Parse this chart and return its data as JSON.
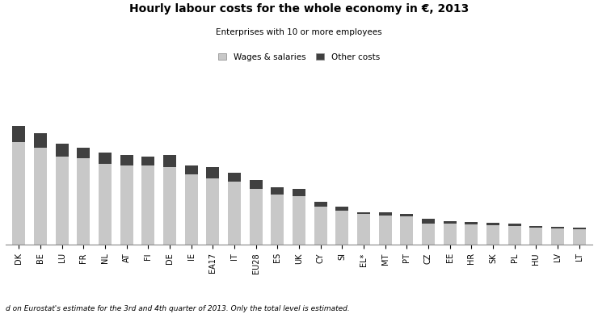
{
  "title": "Hourly labour costs for the whole economy in €, 2013",
  "subtitle": "Enterprises with 10 or more employees",
  "legend_labels": [
    "Wages & salaries",
    "Other costs"
  ],
  "footnote": "d on Eurostat's estimate for the 3rd and 4th quarter of 2013. Only the total level is estimated.",
  "categories": [
    "DK",
    "BE",
    "LU",
    "FR",
    "NL",
    "AT",
    "FI",
    "DE",
    "IE",
    "EA17",
    "IT",
    "EU28",
    "ES",
    "UK",
    "CY",
    "SI",
    "EL*",
    "MT",
    "PT",
    "CZ",
    "EE",
    "HR",
    "SK",
    "PL",
    "HU",
    "LV",
    "LT"
  ],
  "wages": [
    28.5,
    27.0,
    24.5,
    24.0,
    22.5,
    22.0,
    22.0,
    21.5,
    19.5,
    18.5,
    17.5,
    15.5,
    14.0,
    13.5,
    10.5,
    9.5,
    8.5,
    8.2,
    8.0,
    6.0,
    5.8,
    5.6,
    5.5,
    5.3,
    4.8,
    4.5,
    4.3
  ],
  "other": [
    4.5,
    4.0,
    3.5,
    3.0,
    3.0,
    2.8,
    2.5,
    3.5,
    2.5,
    3.0,
    2.5,
    2.5,
    2.0,
    2.0,
    1.5,
    1.0,
    0.5,
    0.8,
    0.5,
    1.2,
    0.7,
    0.8,
    0.7,
    0.6,
    0.5,
    0.4,
    0.4
  ],
  "wages_color": "#c8c8c8",
  "other_color": "#404040",
  "background_color": "#ffffff",
  "bar_width": 0.6,
  "ylim": [
    0,
    40
  ],
  "xlabel_fontsize": 7,
  "title_fontsize": 10,
  "subtitle_fontsize": 7.5,
  "legend_fontsize": 7.5,
  "footnote_fontsize": 6.5
}
